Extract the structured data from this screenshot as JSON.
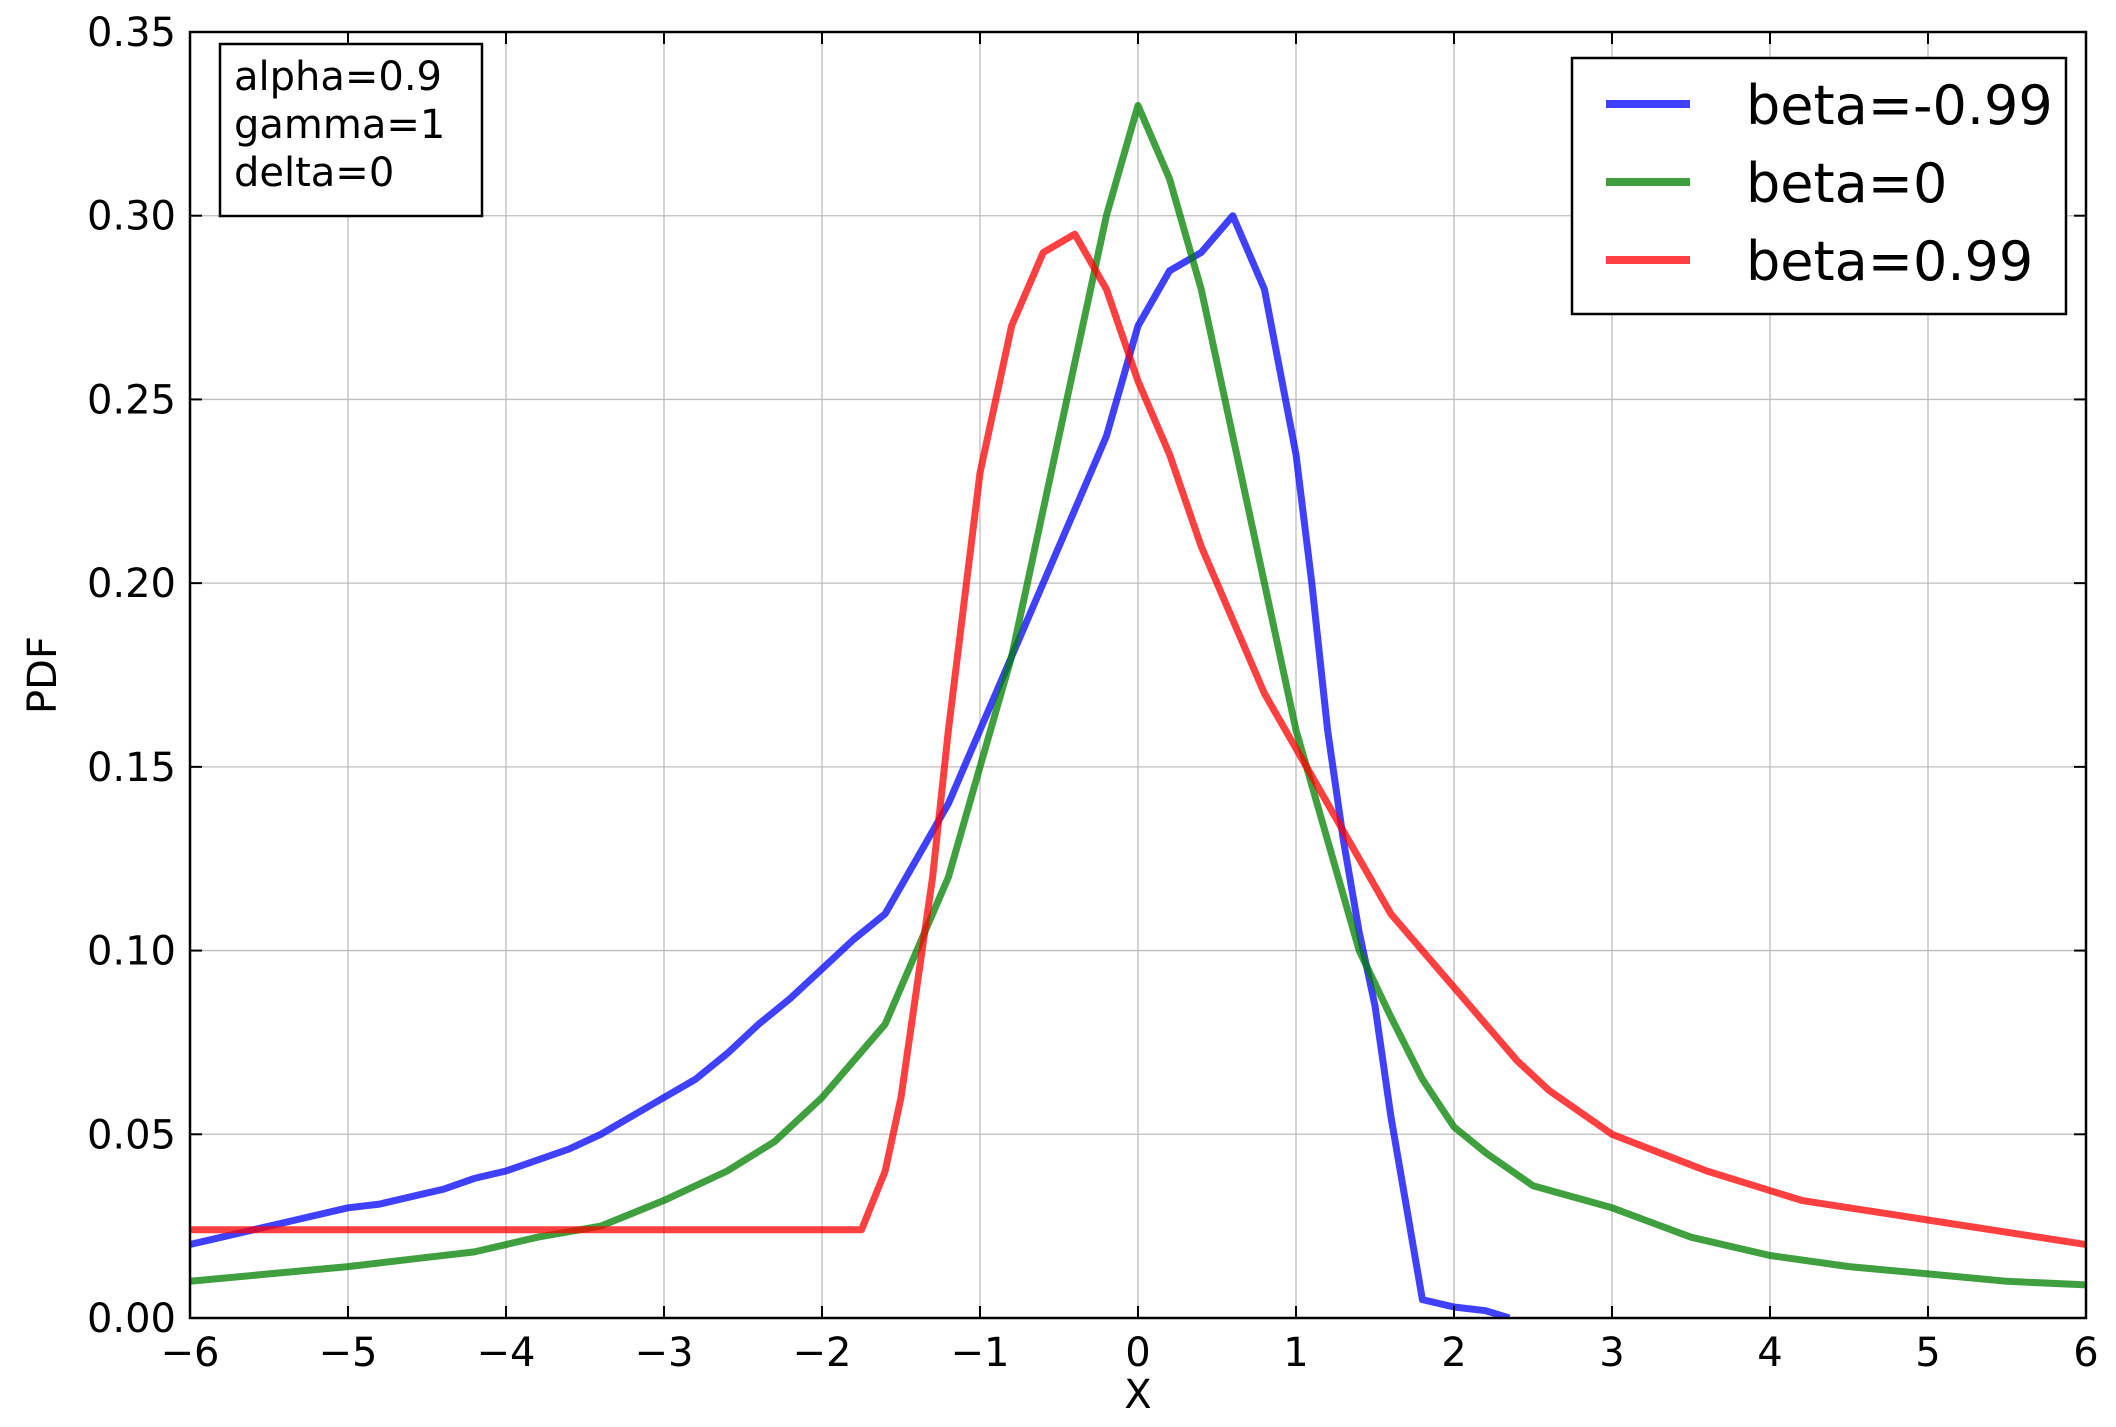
{
  "chart_data": {
    "type": "line",
    "title": "",
    "xlabel": "X",
    "ylabel": "PDF",
    "xlim": [
      -6,
      6
    ],
    "ylim": [
      0,
      0.35
    ],
    "x_ticks": [
      -6,
      -5,
      -4,
      -3,
      -2,
      -1,
      0,
      1,
      2,
      3,
      4,
      5,
      6
    ],
    "x_tick_labels": [
      "−6",
      "−5",
      "−4",
      "−3",
      "−2",
      "−1",
      "0",
      "1",
      "2",
      "3",
      "4",
      "5",
      "6"
    ],
    "y_ticks": [
      0,
      0.05,
      0.1,
      0.15,
      0.2,
      0.25,
      0.3,
      0.35
    ],
    "y_tick_labels": [
      "0.00",
      "0.05",
      "0.10",
      "0.15",
      "0.20",
      "0.25",
      "0.30",
      "0.35"
    ],
    "grid": true,
    "legend_position": "top-right",
    "annotation": {
      "position": "top-left",
      "lines": [
        "alpha=0.9",
        "gamma=1",
        "delta=0"
      ]
    },
    "series": [
      {
        "name": "beta=-0.99",
        "color": "#0000ff",
        "x": [
          -6.0,
          -5.8,
          -5.6,
          -5.4,
          -5.2,
          -5.0,
          -4.8,
          -4.6,
          -4.4,
          -4.2,
          -4.0,
          -3.8,
          -3.6,
          -3.4,
          -3.2,
          -3.0,
          -2.8,
          -2.6,
          -2.4,
          -2.2,
          -2.0,
          -1.8,
          -1.6,
          -1.4,
          -1.2,
          -1.0,
          -0.8,
          -0.6,
          -0.4,
          -0.2,
          0.0,
          0.2,
          0.4,
          0.6,
          0.8,
          1.0,
          1.1,
          1.2,
          1.3,
          1.4,
          1.5,
          1.6,
          1.8,
          2.0,
          2.2,
          2.35
        ],
        "y": [
          0.02,
          0.022,
          0.024,
          0.026,
          0.028,
          0.03,
          0.031,
          0.033,
          0.035,
          0.038,
          0.04,
          0.043,
          0.046,
          0.05,
          0.055,
          0.06,
          0.065,
          0.072,
          0.08,
          0.087,
          0.095,
          0.103,
          0.11,
          0.125,
          0.14,
          0.16,
          0.18,
          0.2,
          0.22,
          0.24,
          0.27,
          0.285,
          0.29,
          0.3,
          0.28,
          0.235,
          0.2,
          0.16,
          0.13,
          0.105,
          0.085,
          0.055,
          0.005,
          0.003,
          0.002,
          0.0
        ]
      },
      {
        "name": "beta=0",
        "color": "#008000",
        "x": [
          -6.0,
          -5.5,
          -5.0,
          -4.6,
          -4.2,
          -3.8,
          -3.4,
          -3.0,
          -2.6,
          -2.3,
          -2.0,
          -1.8,
          -1.6,
          -1.4,
          -1.2,
          -1.0,
          -0.8,
          -0.6,
          -0.4,
          -0.2,
          0.0,
          0.2,
          0.4,
          0.6,
          0.8,
          1.0,
          1.2,
          1.4,
          1.6,
          1.8,
          2.0,
          2.2,
          2.5,
          3.0,
          3.5,
          4.0,
          4.5,
          5.0,
          5.5,
          6.0
        ],
        "y": [
          0.01,
          0.012,
          0.014,
          0.016,
          0.018,
          0.022,
          0.025,
          0.032,
          0.04,
          0.048,
          0.06,
          0.07,
          0.08,
          0.1,
          0.12,
          0.15,
          0.18,
          0.22,
          0.26,
          0.3,
          0.33,
          0.31,
          0.28,
          0.24,
          0.2,
          0.16,
          0.13,
          0.1,
          0.082,
          0.065,
          0.052,
          0.045,
          0.036,
          0.03,
          0.022,
          0.017,
          0.014,
          0.012,
          0.01,
          0.009
        ]
      },
      {
        "name": "beta=0.99",
        "color": "#ff0000",
        "x": [
          -6.0,
          -5.0,
          -4.0,
          -3.0,
          -2.0,
          -1.75,
          -1.6,
          -1.5,
          -1.4,
          -1.3,
          -1.2,
          -1.0,
          -0.8,
          -0.6,
          -0.4,
          -0.2,
          0.0,
          0.2,
          0.4,
          0.6,
          0.8,
          1.0,
          1.2,
          1.4,
          1.6,
          1.8,
          2.0,
          2.2,
          2.4,
          2.6,
          2.8,
          3.0,
          3.3,
          3.6,
          3.9,
          4.2,
          4.5,
          4.8,
          5.1,
          5.4,
          5.7,
          6.0
        ],
        "y": [
          0.024,
          0.024,
          0.024,
          0.024,
          0.024,
          0.024,
          0.04,
          0.06,
          0.09,
          0.12,
          0.16,
          0.23,
          0.27,
          0.29,
          0.295,
          0.28,
          0.255,
          0.235,
          0.21,
          0.19,
          0.17,
          0.155,
          0.14,
          0.125,
          0.11,
          0.1,
          0.09,
          0.08,
          0.07,
          0.062,
          0.056,
          0.05,
          0.045,
          0.04,
          0.036,
          0.032,
          0.03,
          0.028,
          0.026,
          0.024,
          0.022,
          0.02
        ]
      }
    ]
  }
}
